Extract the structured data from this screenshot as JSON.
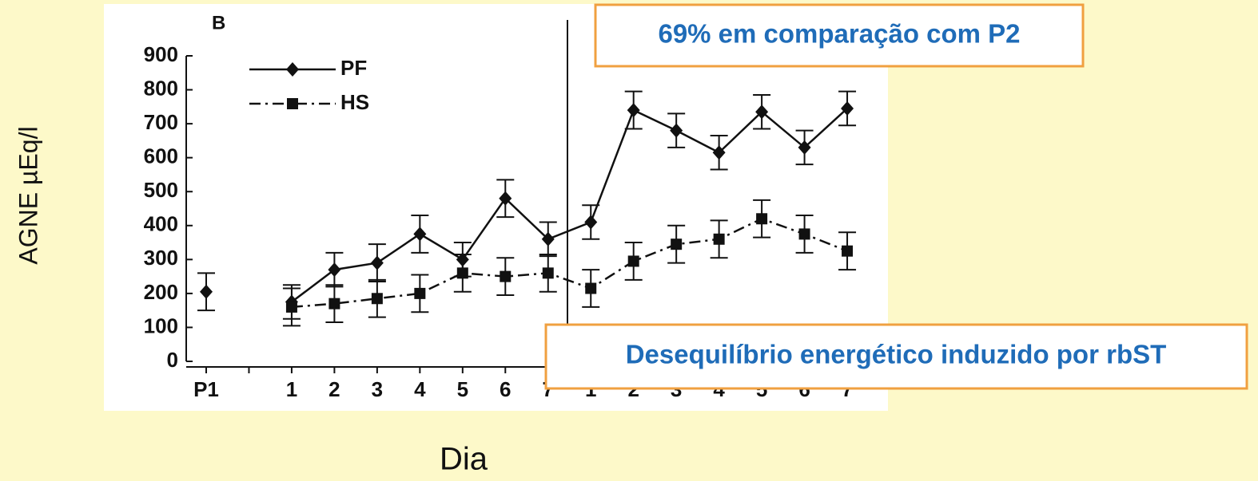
{
  "chart_data": {
    "type": "line",
    "panel_label": "B",
    "y_label": "AGNE  µEq/l",
    "x_label": "Dia",
    "categories": [
      "P1",
      null,
      "1",
      "2",
      "3",
      "4",
      "5",
      "6",
      "7",
      "1",
      "2",
      "3",
      "4",
      "5",
      "6",
      "7"
    ],
    "series": [
      {
        "name": "PF",
        "color": "#111111",
        "dash": "solid",
        "marker": "diamond",
        "values": [
          205,
          null,
          175,
          270,
          290,
          375,
          300,
          480,
          360,
          410,
          740,
          680,
          615,
          735,
          630,
          745
        ],
        "errors": [
          55,
          null,
          50,
          50,
          55,
          55,
          50,
          55,
          50,
          50,
          55,
          50,
          50,
          50,
          50,
          50
        ]
      },
      {
        "name": "HS",
        "color": "#111111",
        "dash": "dashdot",
        "marker": "square",
        "values": [
          null,
          null,
          160,
          170,
          185,
          200,
          260,
          250,
          260,
          215,
          295,
          345,
          360,
          420,
          375,
          325
        ],
        "errors": [
          null,
          null,
          55,
          55,
          55,
          55,
          55,
          55,
          55,
          55,
          55,
          55,
          55,
          55,
          55,
          55
        ]
      }
    ],
    "ylim": [
      0,
      900
    ],
    "yticks": [
      0,
      100,
      200,
      300,
      400,
      500,
      600,
      700,
      800,
      900
    ],
    "legend": "upper left",
    "annotations": [
      "69% em comparação com P2",
      "Desequilíbrio energético induzido por rbST"
    ]
  }
}
